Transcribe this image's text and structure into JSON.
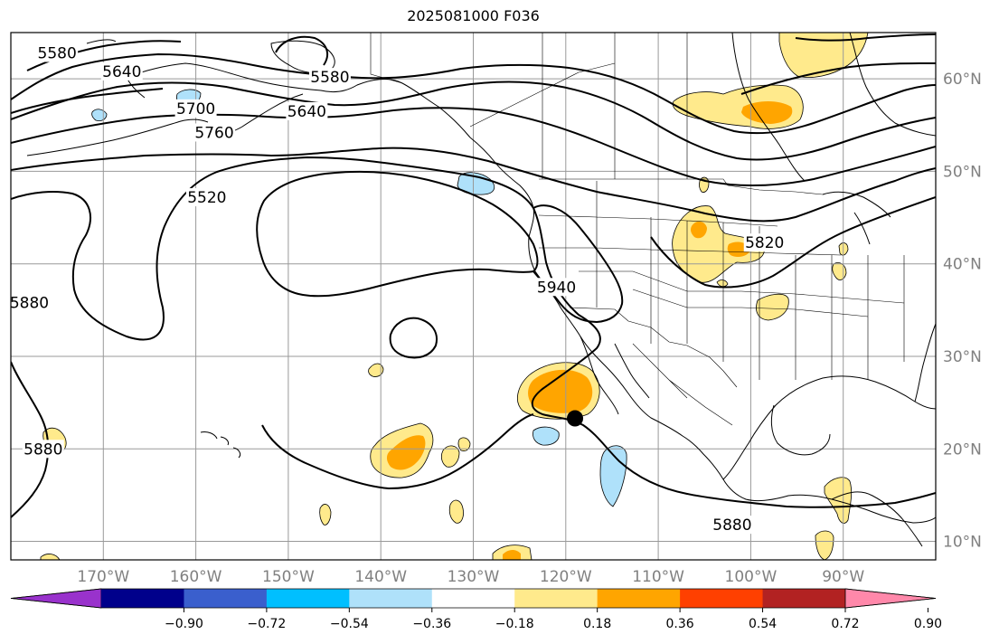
{
  "figure": {
    "title": "2025081000 F036"
  },
  "map": {
    "projection": "plate-carree",
    "extent": {
      "lon": [
        -180,
        -80
      ],
      "lat": [
        8,
        65
      ]
    },
    "grid": true,
    "lon_ticks": [
      -170,
      -160,
      -150,
      -140,
      -130,
      -120,
      -110,
      -100,
      -90
    ],
    "lon_tick_labels": [
      "170°W",
      "160°W",
      "150°W",
      "140°W",
      "130°W",
      "120°W",
      "110°W",
      "100°W",
      "90°W"
    ],
    "lat_ticks": [
      10,
      20,
      30,
      40,
      50,
      60
    ],
    "lat_tick_labels": [
      "10°N",
      "20°N",
      "30°N",
      "40°N",
      "50°N",
      "60°N"
    ],
    "marker": {
      "lon": -119.0,
      "lat": 23.3
    },
    "colors": {
      "land_outline": "#000000",
      "grid": "#999999",
      "tick_label": "#808080",
      "contour": "#000000"
    }
  },
  "contours": [
    {
      "value": "5520",
      "label_lon": -158.8,
      "label_lat": 47.2
    },
    {
      "value": "5580",
      "label_lon": -175.0,
      "label_lat": 62.8
    },
    {
      "value": "5580",
      "label_lon": -145.5,
      "label_lat": 60.2
    },
    {
      "value": "5640",
      "label_lon": -168.0,
      "label_lat": 60.8
    },
    {
      "value": "5640",
      "label_lon": -148.0,
      "label_lat": 56.5
    },
    {
      "value": "5700",
      "label_lon": -160.0,
      "label_lat": 56.8
    },
    {
      "value": "5760",
      "label_lon": -158.0,
      "label_lat": 54.2
    },
    {
      "value": "5820",
      "label_lon": -98.5,
      "label_lat": 42.3
    },
    {
      "value": "5880",
      "label_lon": -178.0,
      "label_lat": 35.8
    },
    {
      "value": "5880",
      "label_lon": -176.5,
      "label_lat": 20.0
    },
    {
      "value": "5880",
      "label_lon": -102.0,
      "label_lat": 11.8
    },
    {
      "value": "5940",
      "label_lon": -121.0,
      "label_lat": 37.5
    }
  ],
  "colorbar": {
    "ticks": [
      "−0.90",
      "−0.72",
      "−0.54",
      "−0.36",
      "−0.18",
      "0.18",
      "0.36",
      "0.54",
      "0.72",
      "0.90"
    ],
    "colors": [
      "#9932cc",
      "#00008b",
      "#3a5fcd",
      "#00bfff",
      "#afe1fa",
      "#ffffff",
      "#ffea8c",
      "#ffa500",
      "#ff4000",
      "#b22222",
      "#ff88aa"
    ]
  },
  "shading": [
    {
      "level": "0.18–0.36",
      "color": "#ffea8c",
      "center_lon": -117.5,
      "center_lat": 25.5
    },
    {
      "level": "0.36–0.54",
      "color": "#ffa500",
      "center_lon": -119.5,
      "center_lat": 25.5
    },
    {
      "level": "0.18–0.36",
      "color": "#ffea8c",
      "center_lon": -136.5,
      "center_lat": 20.0
    },
    {
      "level": "0.36–0.54",
      "color": "#ffa500",
      "center_lon": -136.0,
      "center_lat": 20.5
    },
    {
      "level": "0.18–0.36",
      "color": "#ffea8c",
      "center_lon": -96.5,
      "center_lat": 42.0
    },
    {
      "level": "0.36–0.54",
      "color": "#ffa500",
      "center_lon": -98.5,
      "center_lat": 41.5
    },
    {
      "level": "0.18–0.36",
      "color": "#ffea8c",
      "center_lon": -97.5,
      "center_lat": 58.0
    },
    {
      "level": "0.36–0.54",
      "color": "#ffa500",
      "center_lon": -96.0,
      "center_lat": 56.8
    },
    {
      "level": "0.18–0.36",
      "color": "#ffea8c",
      "center_lon": -91.0,
      "center_lat": 37.0
    },
    {
      "level": "0.18–0.36",
      "color": "#ffea8c",
      "center_lon": -86.5,
      "center_lat": 15.0
    },
    {
      "level": "0.18–0.36",
      "color": "#ffea8c",
      "center_lon": -85.5,
      "center_lat": 11.0
    },
    {
      "level": "0.18–0.36",
      "color": "#ffea8c",
      "center_lon": -176.5,
      "center_lat": 20.5
    },
    {
      "level": "0.18–0.36",
      "color": "#ffea8c",
      "center_lon": -130.5,
      "center_lat": 19.5
    },
    {
      "level": "0.18–0.36",
      "color": "#ffea8c",
      "center_lon": -140.5,
      "center_lat": 28.5
    },
    {
      "level": "0.18–0.36",
      "color": "#ffea8c",
      "center_lon": -132.0,
      "center_lat": 13.0
    },
    {
      "level": "0.18–0.36",
      "color": "#ffea8c",
      "center_lon": -144.0,
      "center_lat": 13.0
    },
    {
      "level": "0.18–0.36",
      "color": "#ffea8c",
      "center_lon": -125.5,
      "center_lat": 8.5
    },
    {
      "level": "0.18–0.36",
      "color": "#ffea8c",
      "center_lon": -88.5,
      "center_lat": 64.0
    },
    {
      "level": "−0.36–−0.18",
      "color": "#afe1fa",
      "center_lon": -128.8,
      "center_lat": 48.5
    },
    {
      "level": "−0.36–−0.18",
      "color": "#afe1fa",
      "center_lon": -115.5,
      "center_lat": 17.8
    },
    {
      "level": "−0.36–−0.18",
      "color": "#afe1fa",
      "center_lon": -122.5,
      "center_lat": 21.3
    },
    {
      "level": "−0.36–−0.18",
      "color": "#afe1fa",
      "center_lon": -160.5,
      "center_lat": 57.8
    },
    {
      "level": "−0.36–−0.18",
      "color": "#afe1fa",
      "center_lon": -170.0,
      "center_lat": 56.0
    }
  ]
}
